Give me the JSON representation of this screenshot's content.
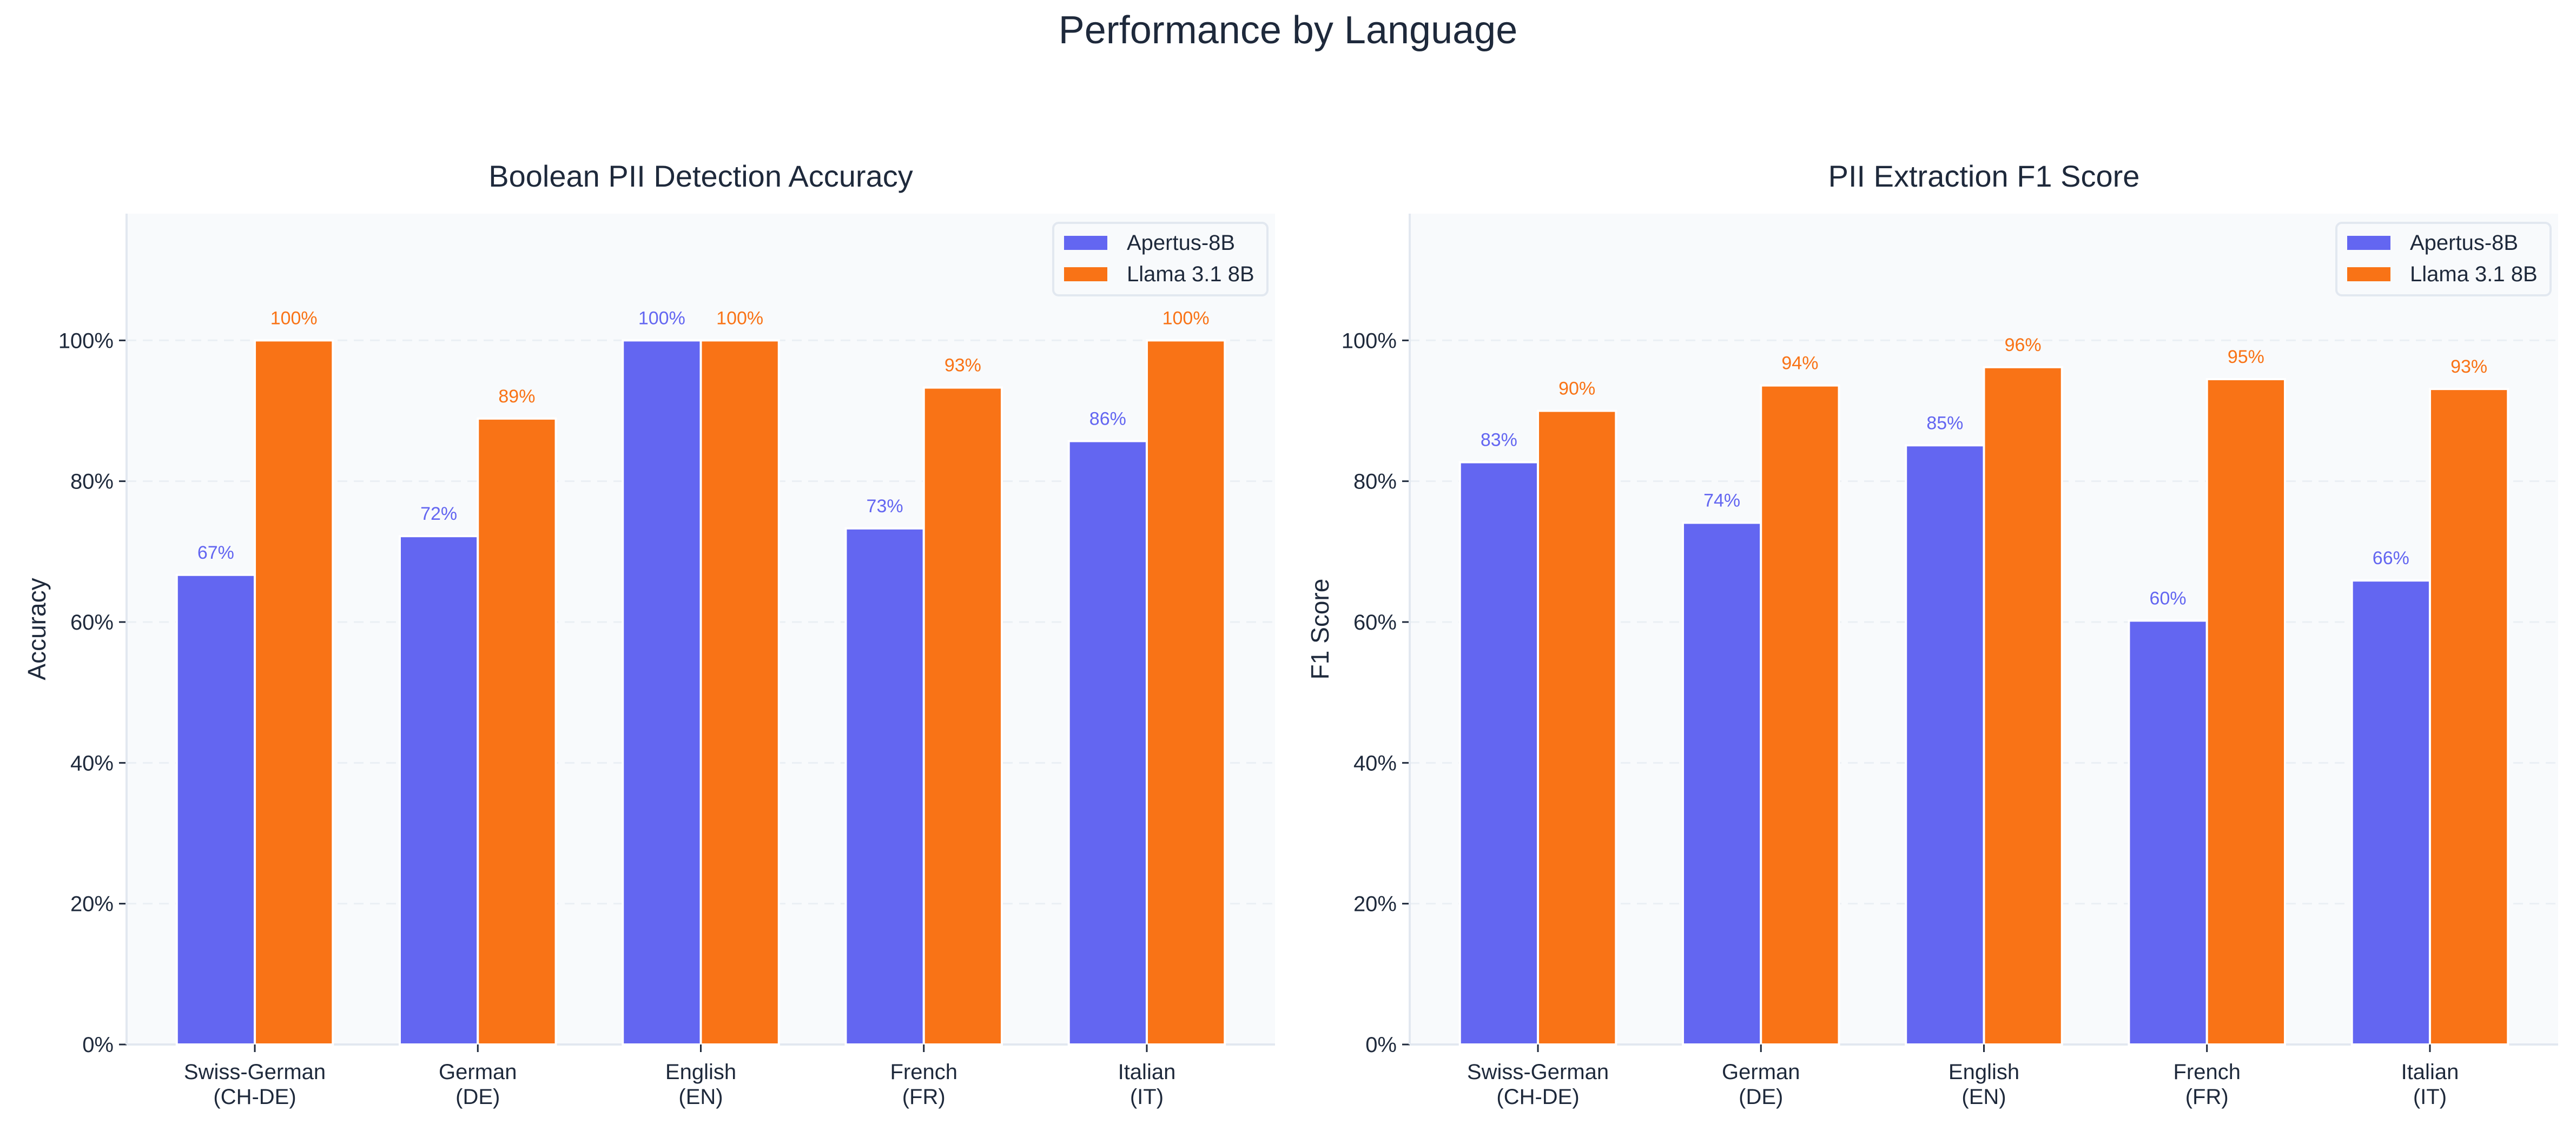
{
  "figure_title": "Performance by Language",
  "colors": {
    "Apertus-8B": "#6366f1",
    "Llama 3.1 8B": "#f97316",
    "text": "#1e293b",
    "plot_bg": "#f8fafc",
    "grid": "#e2e8f0"
  },
  "chart_data": [
    {
      "type": "bar",
      "title": "Boolean PII Detection Accuracy",
      "xlabel": "",
      "ylabel": "Accuracy",
      "ylim": [
        0,
        118
      ],
      "yticks": [
        "0%",
        "20%",
        "40%",
        "60%",
        "80%",
        "100%"
      ],
      "categories": [
        "Swiss-German\n(CH-DE)",
        "German\n(DE)",
        "English\n(EN)",
        "French\n(FR)",
        "Italian\n(IT)"
      ],
      "grid": "horizontal dashed",
      "legend": "top-right",
      "series": [
        {
          "name": "Apertus-8B",
          "values": [
            66.7,
            72.2,
            100,
            73.3,
            85.7
          ],
          "labels": [
            "67%",
            "72%",
            "100%",
            "73%",
            "86%"
          ]
        },
        {
          "name": "Llama 3.1 8B",
          "values": [
            100,
            88.9,
            100,
            93.3,
            100
          ],
          "labels": [
            "100%",
            "89%",
            "100%",
            "93%",
            "100%"
          ]
        }
      ]
    },
    {
      "type": "bar",
      "title": "PII Extraction F1 Score",
      "xlabel": "",
      "ylabel": "F1 Score",
      "ylim": [
        0,
        118
      ],
      "yticks": [
        "0%",
        "20%",
        "40%",
        "60%",
        "80%",
        "100%"
      ],
      "categories": [
        "Swiss-German\n(CH-DE)",
        "German\n(DE)",
        "English\n(EN)",
        "French\n(FR)",
        "Italian\n(IT)"
      ],
      "grid": "horizontal dashed",
      "legend": "top-right",
      "series": [
        {
          "name": "Apertus-8B",
          "values": [
            82.7,
            74.1,
            85.1,
            60.2,
            65.9
          ],
          "labels": [
            "83%",
            "74%",
            "85%",
            "60%",
            "66%"
          ]
        },
        {
          "name": "Llama 3.1 8B",
          "values": [
            90.0,
            93.6,
            96.2,
            94.5,
            93.1
          ],
          "labels": [
            "90%",
            "94%",
            "96%",
            "95%",
            "93%"
          ]
        }
      ]
    }
  ]
}
